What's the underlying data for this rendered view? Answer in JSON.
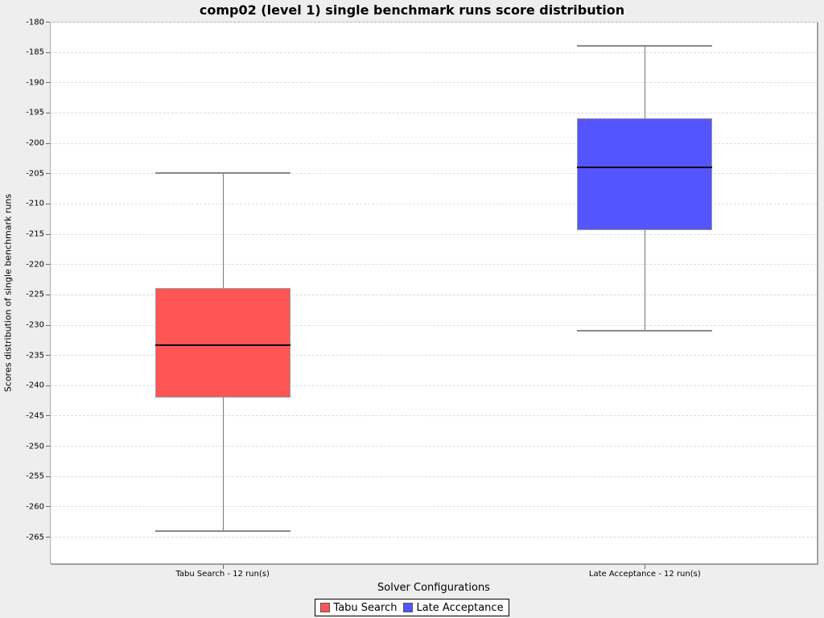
{
  "chart_data": {
    "type": "boxplot",
    "title": "comp02 (level 1) single benchmark runs score distribution",
    "xlabel": "Solver Configurations",
    "ylabel": "Scores distribution of single benchmark runs",
    "ylim": [
      -269.5,
      -180
    ],
    "yticks": [
      -180,
      -185,
      -190,
      -195,
      -200,
      -205,
      -210,
      -215,
      -220,
      -225,
      -230,
      -235,
      -240,
      -245,
      -250,
      -255,
      -260,
      -265
    ],
    "grid": "horizontal-dashed",
    "legend_position": "bottom",
    "categories": [
      "Tabu Search - 12 run(s)",
      "Late Acceptance - 12 run(s)"
    ],
    "series": [
      {
        "name": "Tabu Search",
        "category_label": "Tabu Search - 12 run(s)",
        "color": "#ff5555",
        "upper_whisker": -205,
        "upper_quartile": -224,
        "median": -233.4,
        "lower_quartile": -242,
        "lower_whisker": -264
      },
      {
        "name": "Late Acceptance",
        "category_label": "Late Acceptance - 12 run(s)",
        "color": "#5555ff",
        "upper_whisker": -184,
        "upper_quartile": -196,
        "median": -204,
        "lower_quartile": -214.4,
        "lower_whisker": -231
      }
    ]
  },
  "legend": {
    "items": [
      {
        "label": "Tabu Search",
        "color": "#ff5555"
      },
      {
        "label": "Late Acceptance",
        "color": "#5555ff"
      }
    ]
  },
  "colors": {
    "page_background": "#eeeeee",
    "plot_background": "#ffffff",
    "gridline": "#dddddd",
    "box_outline": "#999999",
    "whisker": "#777777",
    "median": "#000000",
    "text": "#000000"
  }
}
